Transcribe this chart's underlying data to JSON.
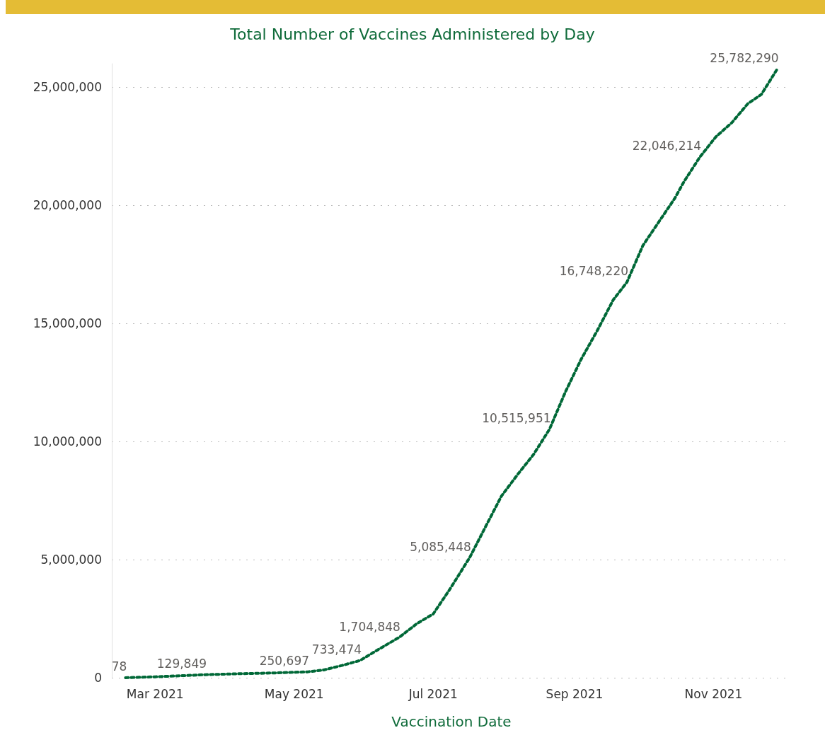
{
  "chart_data": {
    "type": "line",
    "title": "Total Number of Vaccines Administered by Day",
    "xlabel": "Vaccination Date",
    "x": [
      "2021-02-16",
      "2021-03-01",
      "2021-03-23",
      "2021-04-07",
      "2021-04-21",
      "2021-05-07",
      "2021-05-14",
      "2021-05-22",
      "2021-05-30",
      "2021-06-07",
      "2021-06-16",
      "2021-06-24",
      "2021-07-01",
      "2021-07-08",
      "2021-07-17",
      "2021-07-24",
      "2021-07-31",
      "2021-08-07",
      "2021-08-14",
      "2021-08-21",
      "2021-08-28",
      "2021-09-04",
      "2021-09-11",
      "2021-09-18",
      "2021-09-24",
      "2021-10-01",
      "2021-10-08",
      "2021-10-15",
      "2021-10-19",
      "2021-10-26",
      "2021-11-02",
      "2021-11-09",
      "2021-11-16",
      "2021-11-22",
      "2021-11-29"
    ],
    "series": [
      {
        "color": "#006837",
        "values": [
          78,
          40000,
          129849,
          170000,
          200000,
          250697,
          330000,
          520000,
          733474,
          1200000,
          1704848,
          2300000,
          2700000,
          3700000,
          5085448,
          6400000,
          7700000,
          8600000,
          9450000,
          10515951,
          12100000,
          13500000,
          14700000,
          16000000,
          16748220,
          18300000,
          19300000,
          20300000,
          21000000,
          22046214,
          22900000,
          23500000,
          24300000,
          24700000,
          25782290
        ],
        "value_labels": [
          "78",
          null,
          "129,849",
          null,
          null,
          "250,697",
          null,
          null,
          "733,474",
          null,
          "1,704,848",
          null,
          null,
          null,
          "5,085,448",
          null,
          null,
          null,
          null,
          "10,515,951",
          null,
          null,
          null,
          null,
          "16,748,220",
          null,
          null,
          null,
          null,
          "22,046,214",
          null,
          null,
          null,
          null,
          "25,782,290"
        ]
      }
    ],
    "xlim": [
      "2021-02-10",
      "2021-12-05"
    ],
    "xticks": [
      {
        "value": "2021-03-01",
        "label": "Mar 2021"
      },
      {
        "value": "2021-05-01",
        "label": "May 2021"
      },
      {
        "value": "2021-07-01",
        "label": "Jul 2021"
      },
      {
        "value": "2021-09-01",
        "label": "Sep 2021"
      },
      {
        "value": "2021-11-01",
        "label": "Nov 2021"
      }
    ],
    "ylim": [
      0,
      26000000
    ],
    "yticks": [
      {
        "value": 0,
        "label": "0"
      },
      {
        "value": 5000000,
        "label": "5,000,000"
      },
      {
        "value": 10000000,
        "label": "10,000,000"
      },
      {
        "value": 15000000,
        "label": "15,000,000"
      },
      {
        "value": 20000000,
        "label": "20,000,000"
      },
      {
        "value": 25000000,
        "label": "25,000,000"
      }
    ],
    "grid": "y",
    "marker": "none",
    "line_style": "dotted"
  }
}
